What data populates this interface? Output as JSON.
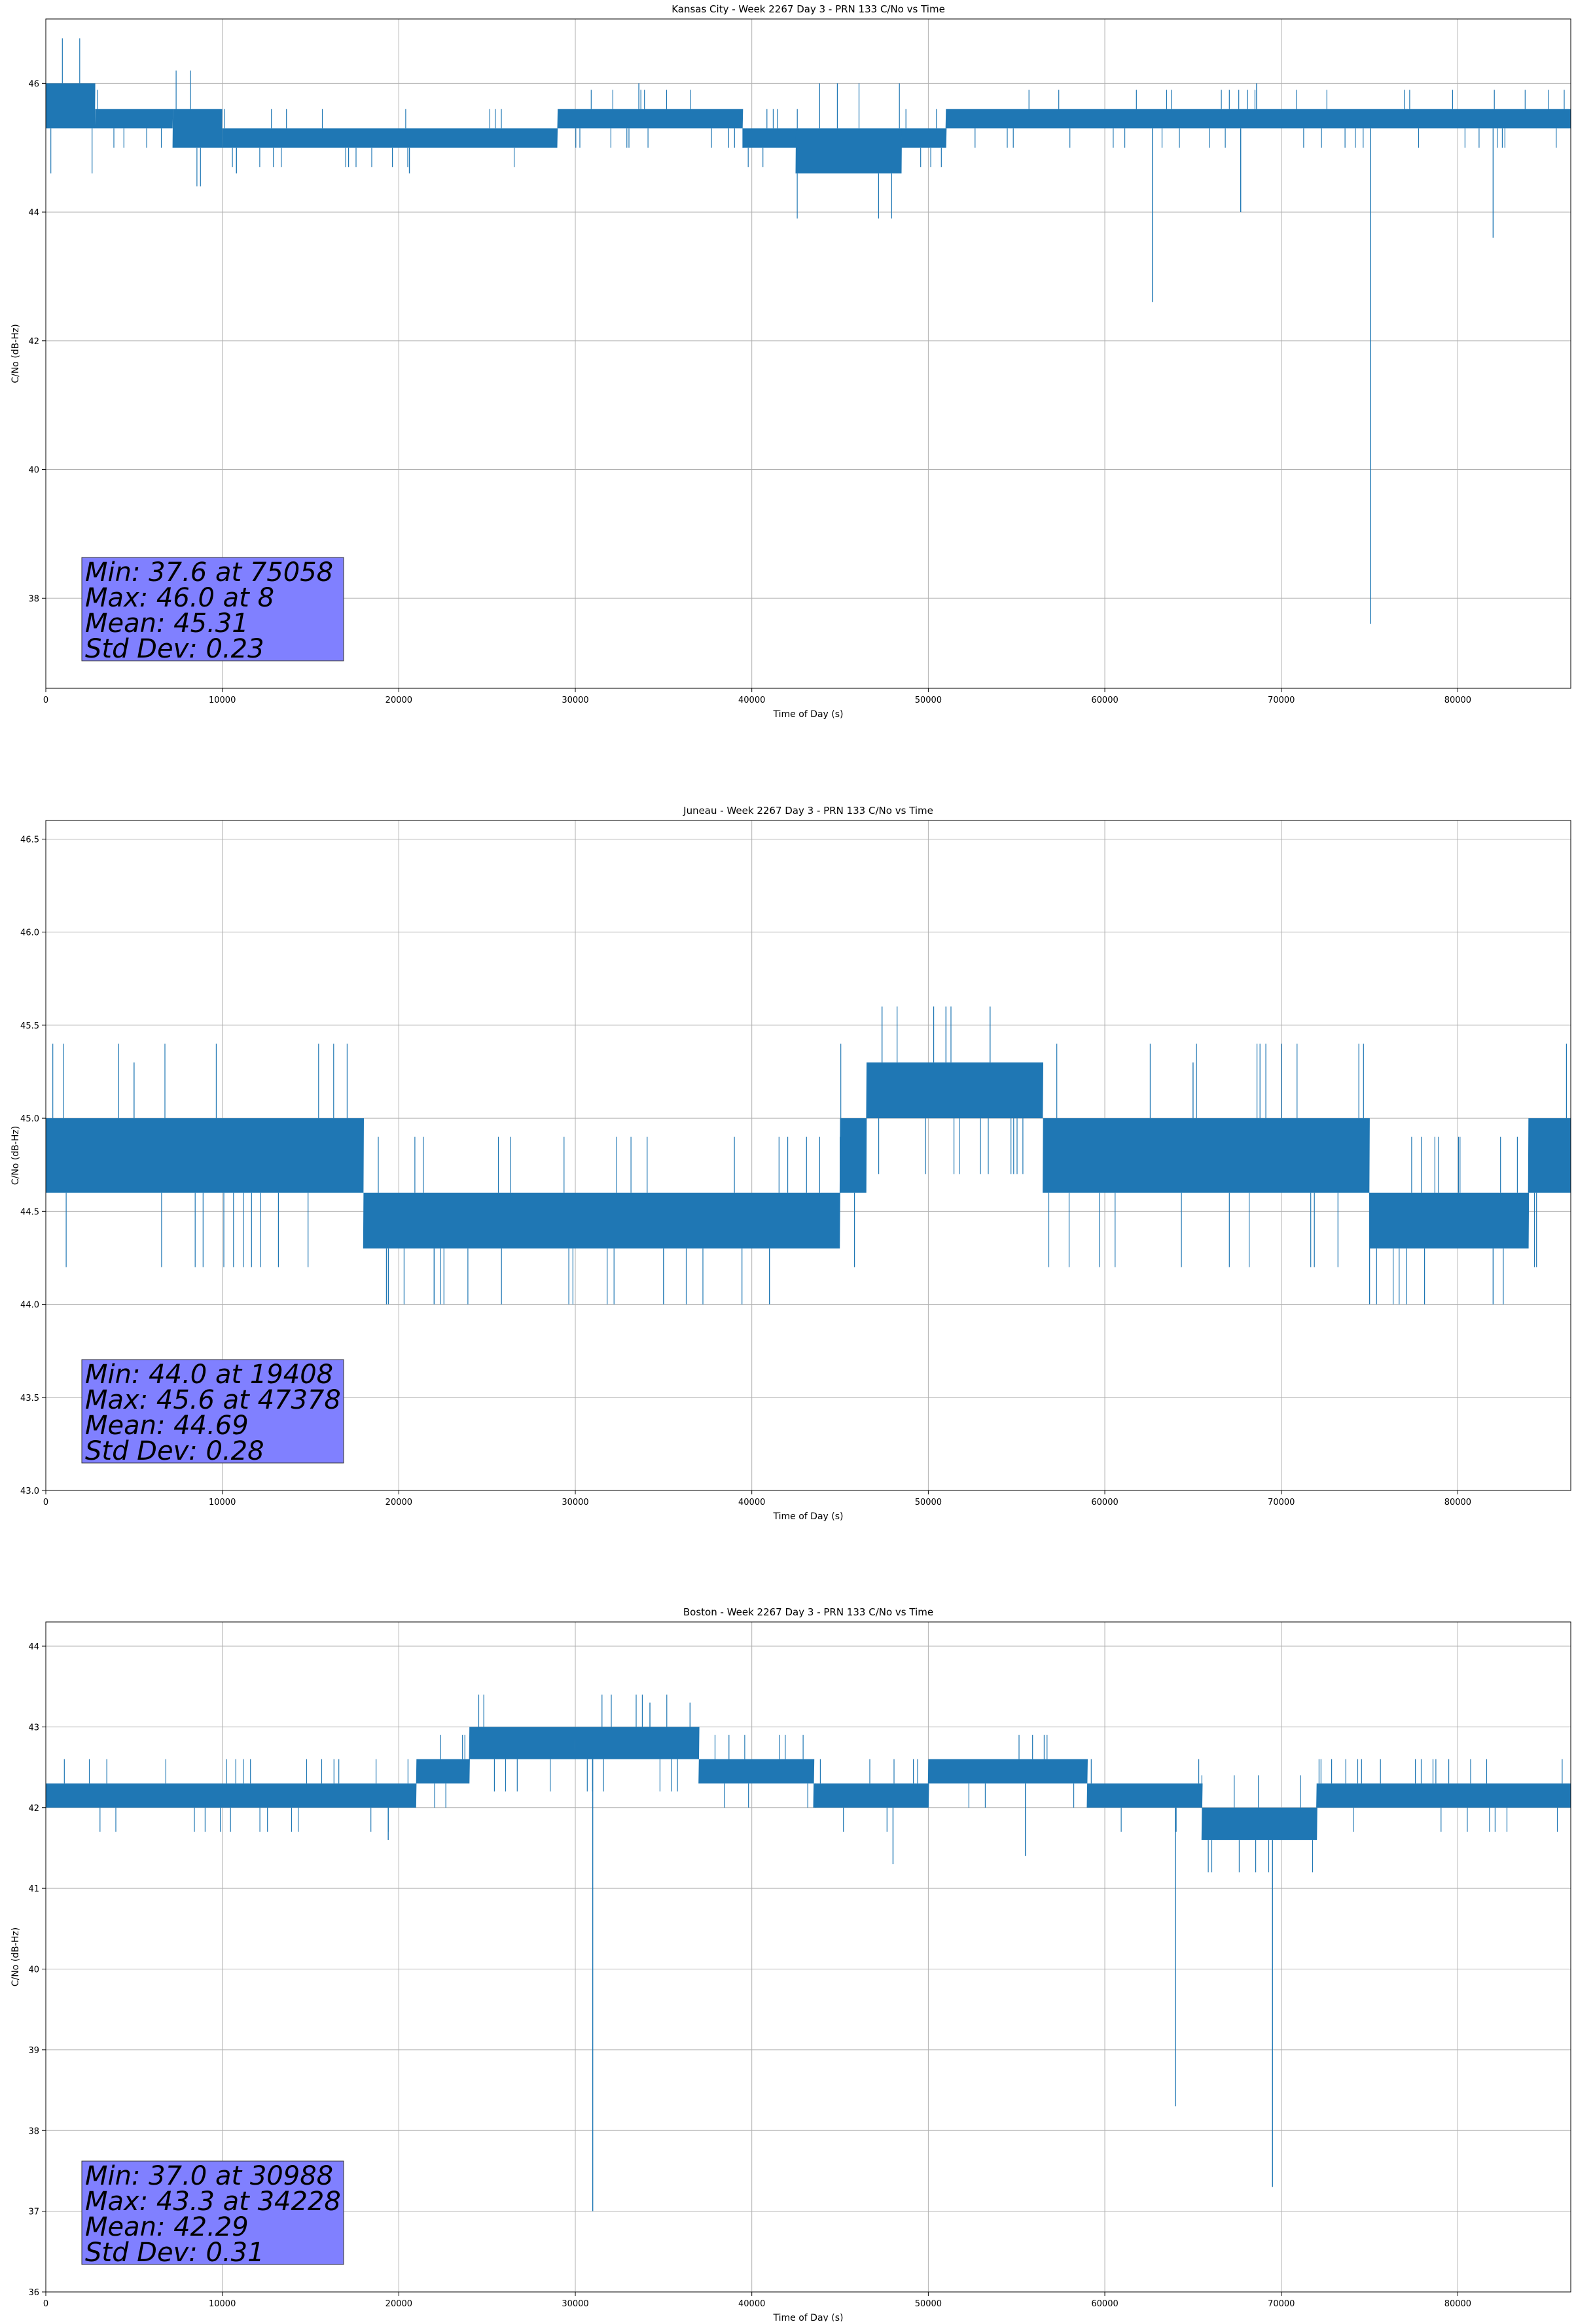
{
  "figure": {
    "background": "#ffffff",
    "line_color": "#1f77b4",
    "stats_box_color": "#8080ff"
  },
  "chart_data": [
    {
      "type": "line",
      "title": "Kansas City - Week 2267 Day 3 - PRN 133 C/No vs Time",
      "xlabel": "Time of Day (s)",
      "ylabel": "C/No (dB-Hz)",
      "xlim": [
        0,
        86400
      ],
      "ylim": [
        36.6,
        47.0
      ],
      "xticks": [
        0,
        10000,
        20000,
        30000,
        40000,
        50000,
        60000,
        70000,
        80000
      ],
      "yticks": [
        38,
        40,
        42,
        44,
        46
      ],
      "ytick_format": "int",
      "grid": true,
      "series": [
        {
          "bands": [
            {
              "x": [
                0,
                2800
              ],
              "y": [
                45.3,
                46.0
              ]
            },
            {
              "x": [
                2800,
                7200
              ],
              "y": [
                45.3,
                45.6
              ]
            },
            {
              "x": [
                7200,
                10000
              ],
              "y": [
                45.0,
                45.6
              ]
            },
            {
              "x": [
                10000,
                29000
              ],
              "y": [
                45.0,
                45.3
              ]
            },
            {
              "x": [
                29000,
                39500
              ],
              "y": [
                45.3,
                45.6
              ]
            },
            {
              "x": [
                39500,
                42500
              ],
              "y": [
                45.0,
                45.3
              ]
            },
            {
              "x": [
                42500,
                48500
              ],
              "y": [
                44.6,
                45.3
              ]
            },
            {
              "x": [
                48500,
                51000
              ],
              "y": [
                45.0,
                45.3
              ]
            },
            {
              "x": [
                51000,
                86400
              ],
              "y": [
                45.3,
                45.6
              ]
            }
          ],
          "points": [
            {
              "x": 62700,
              "y": 42.6
            },
            {
              "x": 67700,
              "y": 44.0
            },
            {
              "x": 75058,
              "y": 37.6
            },
            {
              "x": 82000,
              "y": 43.6
            },
            {
              "x": 10800,
              "y": 44.6
            },
            {
              "x": 20600,
              "y": 44.6
            },
            {
              "x": 33600,
              "y": 46.0
            },
            {
              "x": 68600,
              "y": 46.0
            },
            {
              "x": 8,
              "y": 46.0
            }
          ]
        }
      ],
      "stats": [
        "Min: 37.6 at 75058",
        "Max: 46.0 at 8",
        "Mean: 45.31",
        "Std Dev: 0.23"
      ]
    },
    {
      "type": "line",
      "title": "Juneau - Week 2267 Day 3 - PRN 133 C/No vs Time",
      "xlabel": "Time of Day (s)",
      "ylabel": "C/No (dB-Hz)",
      "xlim": [
        0,
        86400
      ],
      "ylim": [
        43.0,
        46.6
      ],
      "xticks": [
        0,
        10000,
        20000,
        30000,
        40000,
        50000,
        60000,
        70000,
        80000
      ],
      "yticks": [
        43.0,
        43.5,
        44.0,
        44.5,
        45.0,
        45.5,
        46.0,
        46.5
      ],
      "ytick_format": "1dp",
      "grid": true,
      "series": [
        {
          "bands": [
            {
              "x": [
                0,
                18000
              ],
              "y": [
                44.6,
                45.0
              ]
            },
            {
              "x": [
                18000,
                45000
              ],
              "y": [
                44.3,
                44.6
              ]
            },
            {
              "x": [
                45000,
                46500
              ],
              "y": [
                44.6,
                45.0
              ]
            },
            {
              "x": [
                46500,
                56500
              ],
              "y": [
                45.0,
                45.3
              ]
            },
            {
              "x": [
                56500,
                75000
              ],
              "y": [
                44.6,
                45.0
              ]
            },
            {
              "x": [
                75000,
                84000
              ],
              "y": [
                44.3,
                44.6
              ]
            },
            {
              "x": [
                84000,
                86400
              ],
              "y": [
                44.6,
                45.0
              ]
            }
          ],
          "points": [
            {
              "x": 19408,
              "y": 44.0
            },
            {
              "x": 22000,
              "y": 44.0
            },
            {
              "x": 35000,
              "y": 44.0
            },
            {
              "x": 41000,
              "y": 44.0
            },
            {
              "x": 75000,
              "y": 44.0
            },
            {
              "x": 82000,
              "y": 44.0
            },
            {
              "x": 47378,
              "y": 45.6
            },
            {
              "x": 51000,
              "y": 45.6
            },
            {
              "x": 53500,
              "y": 45.6
            },
            {
              "x": 5000,
              "y": 45.3
            },
            {
              "x": 65000,
              "y": 45.3
            }
          ]
        }
      ],
      "stats": [
        "Min: 44.0 at 19408",
        "Max: 45.6 at 47378",
        "Mean: 44.69",
        "Std Dev: 0.28"
      ]
    },
    {
      "type": "line",
      "title": "Boston - Week 2267 Day 3 - PRN 133 C/No vs Time",
      "xlabel": "Time of Day (s)",
      "ylabel": "C/No (dB-Hz)",
      "xlim": [
        0,
        86400
      ],
      "ylim": [
        36.0,
        44.3
      ],
      "xticks": [
        0,
        10000,
        20000,
        30000,
        40000,
        50000,
        60000,
        70000,
        80000
      ],
      "yticks": [
        36,
        37,
        38,
        39,
        40,
        41,
        42,
        43,
        44
      ],
      "ytick_format": "int",
      "grid": true,
      "series": [
        {
          "bands": [
            {
              "x": [
                0,
                21000
              ],
              "y": [
                42.0,
                42.3
              ]
            },
            {
              "x": [
                21000,
                24000
              ],
              "y": [
                42.3,
                42.6
              ]
            },
            {
              "x": [
                24000,
                30000
              ],
              "y": [
                42.6,
                43.0
              ]
            },
            {
              "x": [
                30000,
                37000
              ],
              "y": [
                42.6,
                43.0
              ]
            },
            {
              "x": [
                37000,
                43500
              ],
              "y": [
                42.3,
                42.6
              ]
            },
            {
              "x": [
                43500,
                50000
              ],
              "y": [
                42.0,
                42.3
              ]
            },
            {
              "x": [
                50000,
                59000
              ],
              "y": [
                42.3,
                42.6
              ]
            },
            {
              "x": [
                59000,
                65500
              ],
              "y": [
                42.0,
                42.3
              ]
            },
            {
              "x": [
                65500,
                72000
              ],
              "y": [
                41.6,
                42.0
              ]
            },
            {
              "x": [
                72000,
                86400
              ],
              "y": [
                42.0,
                42.3
              ]
            }
          ],
          "points": [
            {
              "x": 30988,
              "y": 37.0
            },
            {
              "x": 64000,
              "y": 38.3
            },
            {
              "x": 69500,
              "y": 37.3
            },
            {
              "x": 34228,
              "y": 43.3
            },
            {
              "x": 36500,
              "y": 43.3
            },
            {
              "x": 48000,
              "y": 41.3
            },
            {
              "x": 55500,
              "y": 41.4
            },
            {
              "x": 19400,
              "y": 41.6
            }
          ]
        }
      ],
      "stats": [
        "Min: 37.0 at 30988",
        "Max: 43.3 at 34228",
        "Mean: 42.29",
        "Std Dev: 0.31"
      ]
    }
  ]
}
